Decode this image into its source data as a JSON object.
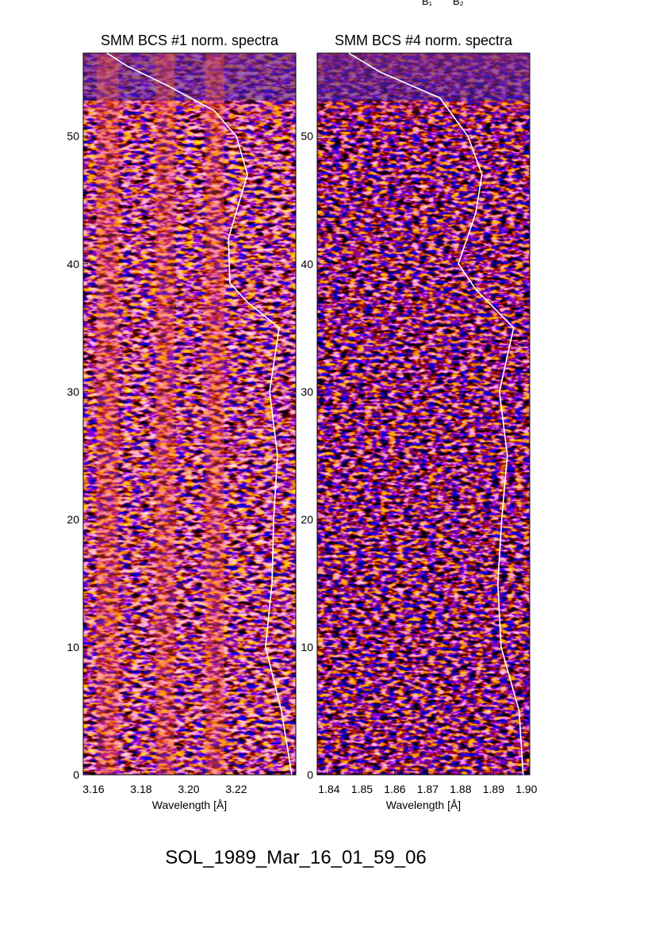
{
  "caption": "SOL_1989_Mar_16_01_59_06",
  "annotations": [
    "B₁",
    "B₂"
  ],
  "chart_data": [
    {
      "type": "line",
      "title": "SMM BCS #1 norm. spectra",
      "x_label": "Wavelength [Å]",
      "xlim": [
        3.1557,
        3.245
      ],
      "xticks": [
        3.16,
        3.18,
        {
          "value": 3.2,
          "label": "3.20"
        },
        3.22
      ],
      "ylim": [
        0,
        56.5
      ],
      "yticks": [
        0,
        10,
        20,
        30,
        40,
        50
      ],
      "series": [
        {
          "color": "#ffffff",
          "x": [
            3.2433,
            3.239,
            3.2323,
            3.235,
            3.2357,
            3.2373,
            3.234,
            3.238,
            3.2247,
            3.2173,
            3.2167,
            3.2247,
            3.22,
            3.2107,
            3.1907,
            3.174,
            3.1657
          ],
          "values": [
            0,
            5,
            10,
            15,
            20,
            25,
            30,
            35,
            37,
            38.5,
            42,
            47,
            50,
            52,
            54,
            55.5,
            56.5
          ]
        }
      ]
    },
    {
      "type": "line",
      "title": "SMM BCS #4 norm. spectra",
      "x_label": "Wavelength [Å]",
      "xlim": [
        1.8364,
        1.901
      ],
      "xticks": [
        1.84,
        1.85,
        1.86,
        1.87,
        1.88,
        1.89,
        {
          "value": 1.9,
          "label": "1.90"
        }
      ],
      "ylim": [
        0,
        56.5
      ],
      "yticks": [
        0,
        10,
        20,
        30,
        40,
        50
      ],
      "series": [
        {
          "color": "#ffffff",
          "x": [
            1.899,
            1.8978,
            1.8923,
            1.8913,
            1.8925,
            1.8942,
            1.8918,
            1.8961,
            1.8846,
            1.8793,
            1.8846,
            1.8865,
            1.8822,
            1.8737,
            1.8557,
            1.846
          ],
          "values": [
            0,
            5,
            10,
            15,
            20,
            25,
            30,
            35,
            38,
            40,
            44,
            47,
            50,
            53,
            55,
            56.5
          ]
        }
      ]
    }
  ]
}
